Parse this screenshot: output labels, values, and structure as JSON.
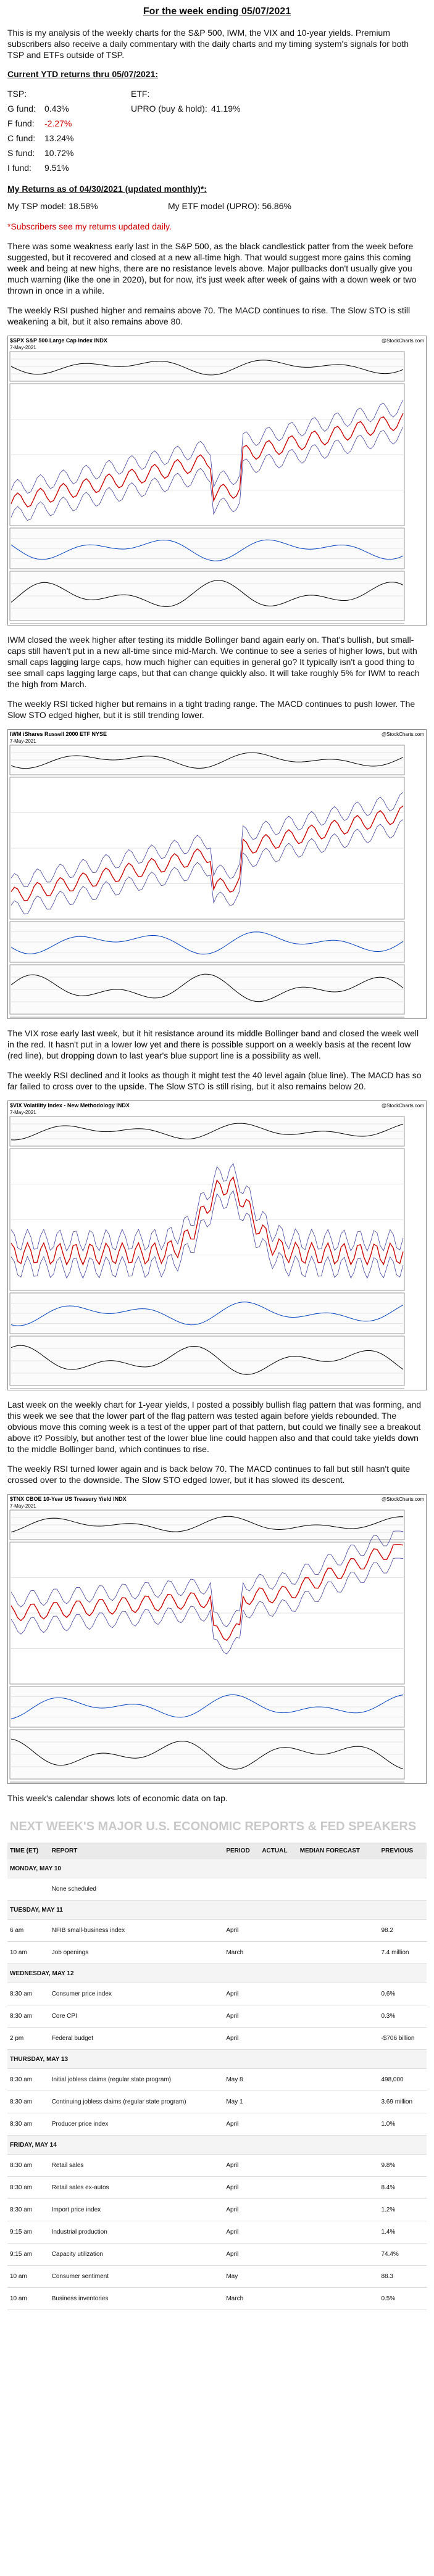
{
  "header": {
    "title": "For the week ending 05/07/2021"
  },
  "intro": "This is my analysis of the weekly charts for the S&P 500, IWM, the VIX and 10-year yields. Premium subscribers also receive a daily commentary with the daily charts and my timing system's signals for both TSP and ETFs outside of TSP.",
  "ytd": {
    "heading": "Current YTD returns thru 05/07/2021:",
    "tsp_label": "TSP:",
    "etf_label": "ETF:",
    "funds": [
      {
        "label": "G fund:",
        "value": "0.43%"
      },
      {
        "label": "F fund:",
        "value": "-2.27%"
      },
      {
        "label": "C fund:",
        "value": "13.24%"
      },
      {
        "label": "S fund:",
        "value": "10.72%"
      },
      {
        "label": "I fund:",
        "value": "9.51%"
      }
    ],
    "upro": {
      "label": "UPRO (buy & hold):",
      "value": "41.19%"
    }
  },
  "returns": {
    "heading": "My Returns as of 04/30/2021 (updated monthly)*:",
    "tsp": "My TSP model: 18.58%",
    "etf": "My ETF model (UPRO): 56.86%",
    "note": "*Subscribers see my returns updated daily."
  },
  "sections": [
    {
      "paragraphs": [
        "There was some weakness early last in the S&P 500, as the black candlestick patter from the week before suggested, but it recovered and closed at a new all-time high. That would suggest more gains this coming week and being at new highs, there are no resistance levels above. Major pullbacks don't usually give you much warning (like the one in 2020), but for now, it's just week after week of gains with a down week or two thrown in once in a while.",
        "The weekly RSI pushed higher and remains above 70. The MACD continues to rise. The Slow STO is still weakening a bit, but it also remains above 80."
      ],
      "chart": {
        "name": "$SPX S&P 500 Large Cap Index INDX",
        "date": "7-May-2021",
        "source": "@StockCharts.com"
      }
    },
    {
      "paragraphs": [
        "IWM closed the week higher after testing its middle Bollinger band again early on. That's bullish, but small-caps still haven't put in a new all-time since mid-March. We continue to see a series of higher lows, but with small caps lagging large caps, how much higher can equities in general go? It typically isn't a good thing to see small caps lagging large caps, but that can change quickly also. It will take roughly 5% for IWM to reach the high from March.",
        "The weekly RSI ticked higher but remains in a tight trading range. The MACD continues to push lower. The Slow STO edged higher, but it is still trending lower."
      ],
      "chart": {
        "name": "IWM iShares Russell 2000 ETF NYSE",
        "date": "7-May-2021",
        "source": "@StockCharts.com"
      }
    },
    {
      "paragraphs": [
        "The VIX rose early last week, but it hit resistance around its middle Bollinger band and closed the week well in the red. It hasn't put in a lower low yet and there is possible support on a weekly basis at the recent low (red line), but dropping down to last year's blue support line is a possibility as well.",
        "The weekly RSI declined and it looks as though it might test the 40 level again (blue line). The MACD has so far failed to cross over to the upside. The Slow STO is still rising, but it also remains below 20."
      ],
      "chart": {
        "name": "$VIX Volatility Index - New Methodology INDX",
        "date": "7-May-2021",
        "source": "@StockCharts.com"
      }
    },
    {
      "paragraphs": [
        "Last week on the weekly chart for 1-year yields, I posted a possibly bullish flag pattern that was forming, and this week we see that the lower part of the flag pattern was tested again before yields rebounded. The obvious move this coming week is a test of the upper part of that pattern, but could we finally see a breakout above it? Possibly, but another test of the lower blue line could happen also and that could take yields down to the middle Bollinger band, which continues to rise.",
        "The weekly RSI turned lower again and is back below 70. The MACD continues to fall but still hasn't quite crossed over to the downside. The Slow STO edged lower, but it has slowed its descent."
      ],
      "chart": {
        "name": "$TNX CBOE 10-Year US Treasury Yield INDX",
        "date": "7-May-2021",
        "source": "@StockCharts.com"
      }
    }
  ],
  "calendar": {
    "intro": "This week's calendar shows lots of economic data on tap.",
    "title": "NEXT WEEK'S MAJOR U.S. ECONOMIC REPORTS & FED SPEAKERS",
    "columns": [
      "TIME (ET)",
      "REPORT",
      "PERIOD",
      "ACTUAL",
      "MEDIAN FORECAST",
      "PREVIOUS"
    ],
    "days": [
      {
        "day": "MONDAY, MAY 10",
        "rows": [
          [
            "None scheduled"
          ]
        ]
      },
      {
        "day": "TUESDAY, MAY 11",
        "rows": [
          [
            "6 am",
            "NFIB small-business index",
            "April",
            "98.2"
          ],
          [
            "10 am",
            "Job openings",
            "March",
            "7.4 million"
          ]
        ]
      },
      {
        "day": "WEDNESDAY, MAY 12",
        "rows": [
          [
            "8:30 am",
            "Consumer price index",
            "April",
            "0.6%"
          ],
          [
            "8:30 am",
            "Core CPI",
            "April",
            "0.3%"
          ],
          [
            "2 pm",
            "Federal budget",
            "April",
            "-$706 billion"
          ]
        ]
      },
      {
        "day": "THURSDAY, MAY 13",
        "rows": [
          [
            "8:30 am",
            "Initial jobless claims (regular state program)",
            "May 8",
            "498,000"
          ],
          [
            "8:30 am",
            "Continuing jobless claims (regular state program)",
            "May 1",
            "3.69 million"
          ],
          [
            "8:30 am",
            "Producer price index",
            "April",
            "1.0%"
          ]
        ]
      },
      {
        "day": "FRIDAY, MAY 14",
        "rows": [
          [
            "8:30 am",
            "Retail sales",
            "April",
            "9.8%"
          ],
          [
            "8:30 am",
            "Retail sales ex-autos",
            "April",
            "8.4%"
          ],
          [
            "8:30 am",
            "Import price index",
            "April",
            "1.2%"
          ],
          [
            "9:15 am",
            "Industrial production",
            "April",
            "1.4%"
          ],
          [
            "9:15 am",
            "Capacity utilization",
            "April",
            "74.4%"
          ],
          [
            "10 am",
            "Consumer sentiment",
            "May",
            "88.3"
          ],
          [
            "10 am",
            "Business inventories",
            "March",
            "0.5%"
          ]
        ]
      }
    ]
  }
}
